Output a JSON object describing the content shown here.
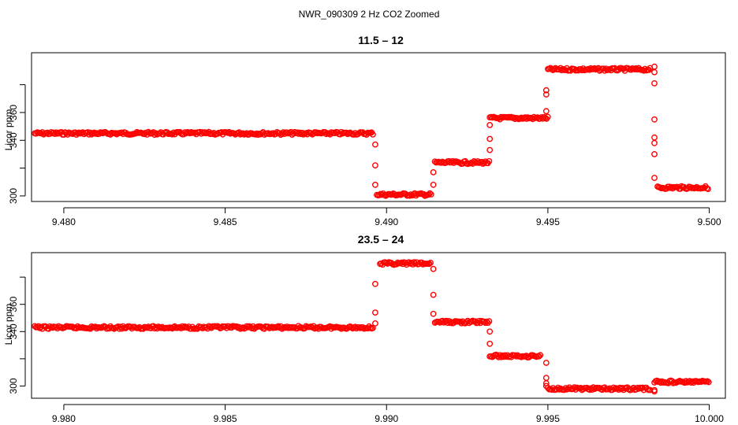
{
  "figure_title": "NWR_090309  2 Hz CO2 Zoomed",
  "chart_data": [
    {
      "type": "scatter",
      "title": "11.5 – 12",
      "ylabel": "Licor ppm",
      "xlabel": "",
      "xlim": [
        9.479,
        9.5005
      ],
      "ylim": [
        296,
        403
      ],
      "xticks": [
        9.48,
        9.485,
        9.49,
        9.495,
        9.5
      ],
      "xtick_labels": [
        "9.480",
        "9.485",
        "9.490",
        "9.495",
        "9.500"
      ],
      "yticks": [
        300,
        340,
        360
      ],
      "ytick_labels": [
        "300",
        "340",
        "360"
      ],
      "grid": false,
      "marker": "open-circle",
      "color": "#ff0000",
      "segments": [
        {
          "x_start": 9.4791,
          "x_end": 9.4896,
          "y": 345
        },
        {
          "x_start": 9.4897,
          "x_end": 9.4914,
          "y": 301
        },
        {
          "x_start": 9.4915,
          "x_end": 9.4932,
          "y": 324
        },
        {
          "x_start": 9.4932,
          "x_end": 9.495,
          "y": 356
        },
        {
          "x_start": 9.495,
          "x_end": 9.4982,
          "y": 391
        },
        {
          "x_start": 9.4984,
          "x_end": 9.5,
          "y": 306
        }
      ],
      "transitions": [
        {
          "x": 9.48965,
          "y": [
            337,
            322,
            308
          ]
        },
        {
          "x": 9.49145,
          "y": [
            308,
            317
          ]
        },
        {
          "x": 9.4932,
          "y": [
            333,
            341,
            351
          ]
        },
        {
          "x": 9.49495,
          "y": [
            361,
            376,
            373
          ]
        },
        {
          "x": 9.4983,
          "y": [
            393,
            389,
            381,
            355,
            342,
            338,
            330,
            313
          ]
        }
      ]
    },
    {
      "type": "scatter",
      "title": "23.5 – 24",
      "ylabel": "Licor ppm",
      "xlabel": "",
      "xlim": [
        9.979,
        10.0005
      ],
      "ylim": [
        291,
        398
      ],
      "xticks": [
        9.98,
        9.985,
        9.99,
        9.995,
        10.0
      ],
      "xtick_labels": [
        "9.980",
        "9.985",
        "9.990",
        "9.995",
        "10.000"
      ],
      "yticks": [
        300,
        340,
        360
      ],
      "ytick_labels": [
        "300",
        "340",
        "360"
      ],
      "grid": false,
      "marker": "open-circle",
      "color": "#ff0000",
      "segments": [
        {
          "x_start": 9.9791,
          "x_end": 9.9896,
          "y": 343
        },
        {
          "x_start": 9.9898,
          "x_end": 9.9914,
          "y": 390
        },
        {
          "x_start": 9.9915,
          "x_end": 9.9932,
          "y": 347
        },
        {
          "x_start": 9.9932,
          "x_end": 9.9948,
          "y": 322
        },
        {
          "x_start": 9.995,
          "x_end": 9.9982,
          "y": 298
        },
        {
          "x_start": 9.9983,
          "x_end": 10.0,
          "y": 303
        }
      ],
      "transitions": [
        {
          "x": 9.98965,
          "y": [
            346,
            354,
            375
          ]
        },
        {
          "x": 9.99145,
          "y": [
            386,
            367,
            353
          ]
        },
        {
          "x": 9.9932,
          "y": [
            340,
            331
          ]
        },
        {
          "x": 9.99495,
          "y": [
            317,
            306,
            302,
            300
          ]
        },
        {
          "x": 9.9983,
          "y": [
            297,
            296
          ]
        }
      ]
    }
  ]
}
